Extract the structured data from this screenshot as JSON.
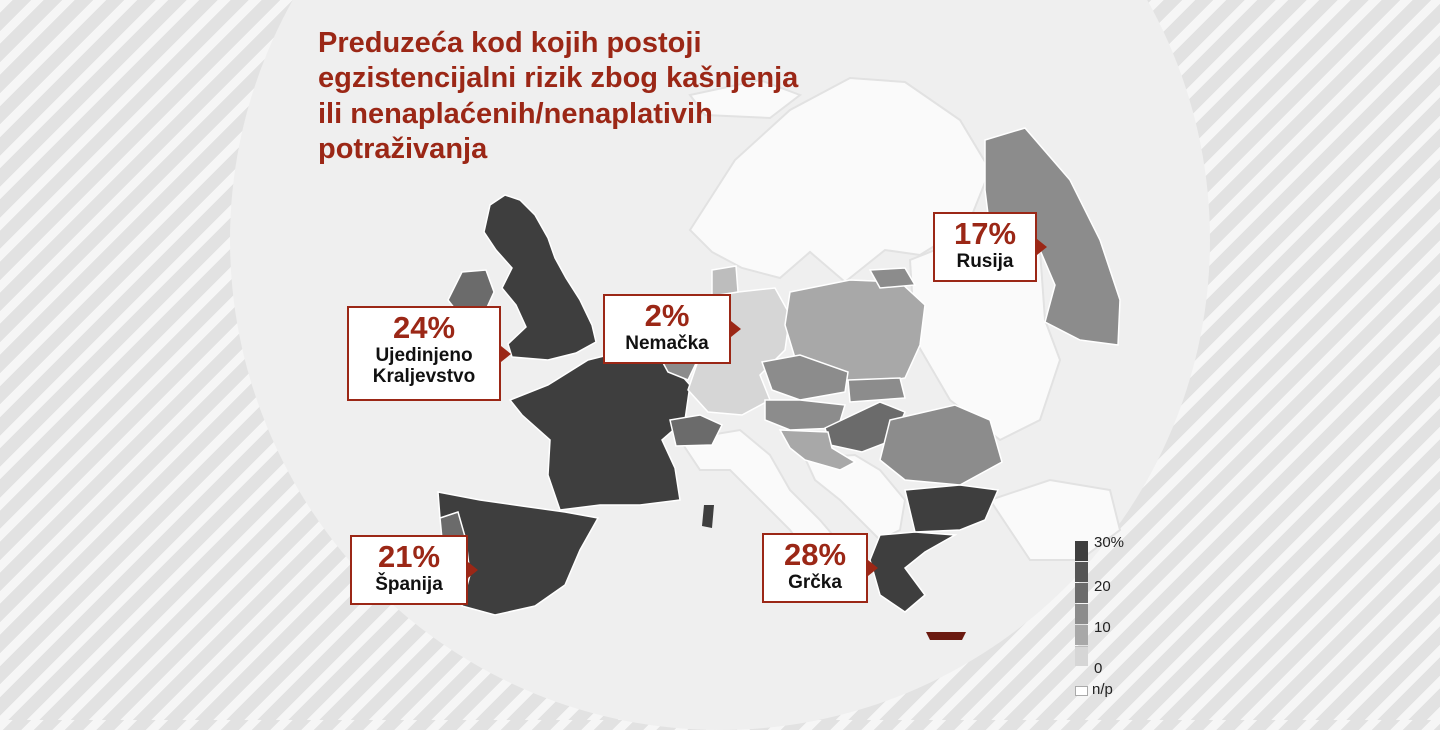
{
  "title": {
    "line1": "Preduzeća kod kojih postoji",
    "line2": "egzistencijalni rizik zbog kašnjenja",
    "line3": "ili nenaplaćenih/nenaplativih",
    "line4": "potraživanja"
  },
  "colors": {
    "accent": "#9b2716",
    "shade_30": "#3e3e3e",
    "shade_20": "#6b6b6b",
    "shade_15": "#8c8c8c",
    "shade_10": "#a8a8a8",
    "shade_5": "#bdbdbd",
    "shade_0": "#d6d6d6",
    "no_data": "#fafafa"
  },
  "callouts": [
    {
      "pct": "24%",
      "label_line1": "Ujedinjeno",
      "label_line2": "Kraljevstvo",
      "value": 24
    },
    {
      "pct": "2%",
      "label_line1": "Nemačka",
      "value": 2
    },
    {
      "pct": "17%",
      "label_line1": "Rusija",
      "value": 17
    },
    {
      "pct": "21%",
      "label_line1": "Španija",
      "value": 21
    },
    {
      "pct": "28%",
      "label_line1": "Grčka",
      "value": 28
    }
  ],
  "legend": {
    "ticks": [
      "30%",
      "20",
      "10",
      "0"
    ],
    "no_data_label": "n/p"
  },
  "chart_data": {
    "type": "choropleth",
    "title": "Preduzeća kod kojih postoji egzistencijalni rizik zbog kašnjenja ili nenaplaćenih/nenaplativih potraživanja",
    "unit": "%",
    "scale": [
      0,
      30
    ],
    "labeled_values": [
      {
        "country": "Ujedinjeno Kraljevstvo",
        "value": 24
      },
      {
        "country": "Nemačka",
        "value": 2
      },
      {
        "country": "Rusija",
        "value": 17
      },
      {
        "country": "Španija",
        "value": 21
      },
      {
        "country": "Grčka",
        "value": 28
      }
    ]
  }
}
